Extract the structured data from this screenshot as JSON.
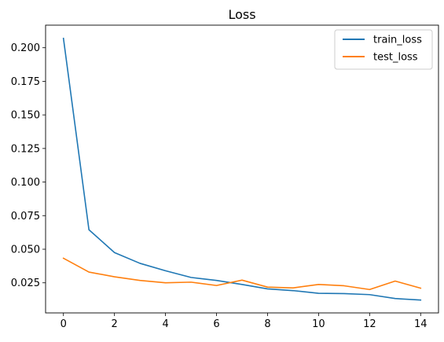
{
  "chart_data": {
    "type": "line",
    "title": "Loss",
    "xlabel": "",
    "ylabel": "",
    "xlim": [
      -0.7,
      14.7
    ],
    "ylim": [
      0.0026,
      0.2168
    ],
    "x_ticks": [
      0,
      2,
      4,
      6,
      8,
      10,
      12,
      14
    ],
    "y_ticks": [
      0.025,
      0.05,
      0.075,
      0.1,
      0.125,
      0.15,
      0.175,
      0.2
    ],
    "y_tick_labels": [
      "0.025",
      "0.050",
      "0.075",
      "0.100",
      "0.125",
      "0.150",
      "0.175",
      "0.200"
    ],
    "grid": false,
    "legend_position": "top-right",
    "x": [
      0,
      1,
      2,
      3,
      4,
      5,
      6,
      7,
      8,
      9,
      10,
      11,
      12,
      13,
      14
    ],
    "series": [
      {
        "name": "train_loss",
        "color": "#1f77b4",
        "values": [
          0.207,
          0.0645,
          0.0475,
          0.0395,
          0.034,
          0.029,
          0.0268,
          0.0238,
          0.0205,
          0.0192,
          0.0172,
          0.017,
          0.0162,
          0.0133,
          0.0122
        ]
      },
      {
        "name": "test_loss",
        "color": "#ff7f0e",
        "values": [
          0.0433,
          0.033,
          0.0295,
          0.0268,
          0.025,
          0.0255,
          0.023,
          0.027,
          0.0218,
          0.0212,
          0.0238,
          0.0228,
          0.02,
          0.0263,
          0.021
        ]
      }
    ]
  }
}
